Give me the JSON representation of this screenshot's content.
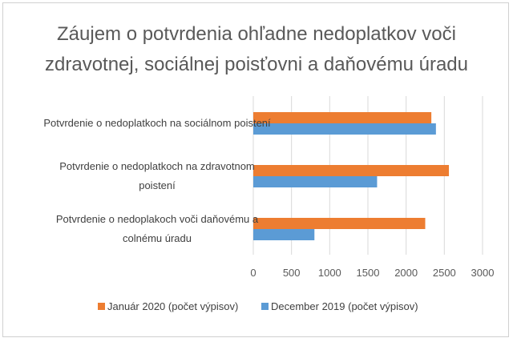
{
  "chart_data": {
    "type": "bar",
    "orientation": "horizontal",
    "title_lines": [
      "Záujem o potvrdenia ohľadne nedoplatkov voči",
      "zdravotnej, sociálnej poisťovni a daňovému úradu"
    ],
    "categories": [
      [
        "Potvrdenie o nedoplatkoch na sociálnom poistení"
      ],
      [
        "Potvrdenie o nedoplatkoch na zdravotnom",
        "poistení"
      ],
      [
        "Potvrdenie o nedoplakoch voči daňovému a",
        "colnému úradu"
      ]
    ],
    "series": [
      {
        "name": "Január 2020 (počet výpisov)",
        "color": "#ED7D31",
        "values": [
          2330,
          2560,
          2250
        ]
      },
      {
        "name": "December 2019 (počet výpisov)",
        "color": "#5B9BD5",
        "values": [
          2390,
          1620,
          800
        ]
      }
    ],
    "xlim": [
      0,
      3000
    ],
    "xticks": [
      "0",
      "500",
      "1000",
      "1500",
      "2000",
      "2500",
      "3000"
    ],
    "grid": true,
    "legend_position": "bottom"
  }
}
